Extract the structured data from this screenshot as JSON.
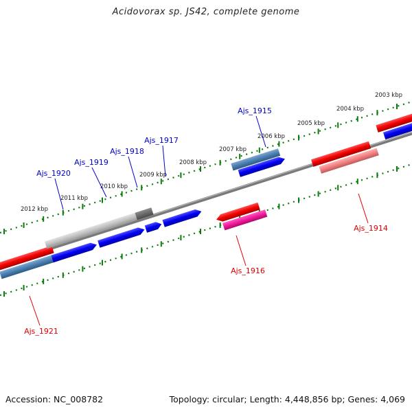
{
  "title": "Acidovorax sp. JS42, complete genome",
  "accession_text": "Accession: NC_008782",
  "summary_text": "Topology: circular; Length: 4,448,856 bp; Genes: 4,069",
  "ticks_top": [
    {
      "label": "2003 kbp",
      "kbp": 2003
    },
    {
      "label": "2004 kbp",
      "kbp": 2004
    },
    {
      "label": "2005 kbp",
      "kbp": 2005
    },
    {
      "label": "2006 kbp",
      "kbp": 2006
    },
    {
      "label": "2007 kbp",
      "kbp": 2007
    },
    {
      "label": "2008 kbp",
      "kbp": 2008
    },
    {
      "label": "2009 kbp",
      "kbp": 2009
    },
    {
      "label": "2010 kbp",
      "kbp": 2010
    },
    {
      "label": "2011 kbp",
      "kbp": 2011
    },
    {
      "label": "2012 kbp",
      "kbp": 2012
    }
  ],
  "gene_labels": [
    {
      "label": "Ajs_1914",
      "color": "#e00000"
    },
    {
      "label": "Ajs_1915",
      "color": "#0000cc"
    },
    {
      "label": "Ajs_1916",
      "color": "#e00000"
    },
    {
      "label": "Ajs_1917",
      "color": "#0000cc"
    },
    {
      "label": "Ajs_1918",
      "color": "#0000cc"
    },
    {
      "label": "Ajs_1919",
      "color": "#0000cc"
    },
    {
      "label": "Ajs_1920",
      "color": "#0000cc"
    },
    {
      "label": "Ajs_1921",
      "color": "#e00000"
    }
  ],
  "colors": {
    "backbone": "#7a7a7a",
    "tick": "#0a7a0a",
    "forward_cds": "#0000ee",
    "reverse_cds": "#ee0000",
    "steel_blue": "#4a7fb0",
    "grey": "#bdbdbd",
    "dark_grey": "#6e6e6e",
    "pink": "#f0109a",
    "salmon": "#f08080"
  }
}
